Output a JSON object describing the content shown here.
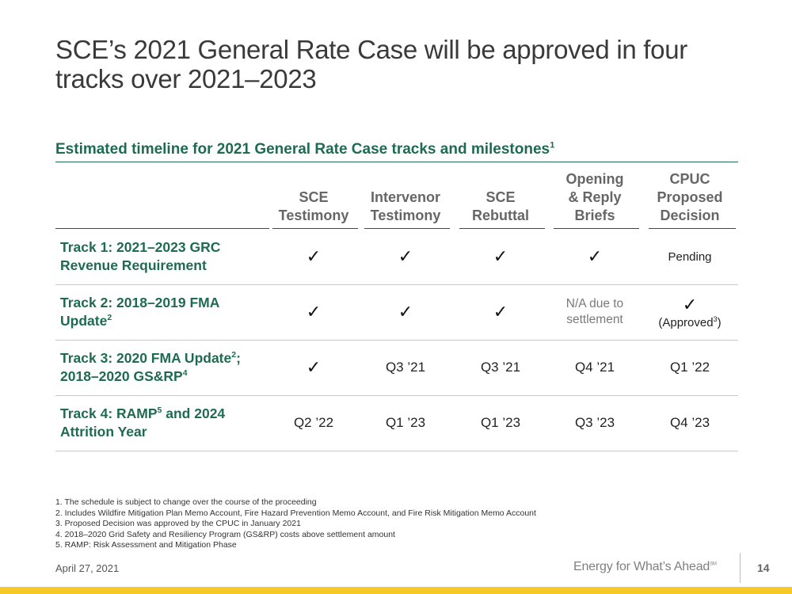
{
  "title": "SCE’s 2021 General Rate Case will be approved in four tracks over 2021–2023",
  "subtitle": "Estimated timeline for 2021 General Rate Case tracks and milestones",
  "subtitle_sup": "1",
  "columns": [
    "SCE\nTestimony",
    "Intervenor\nTestimony",
    "SCE\nRebuttal",
    "Opening\n& Reply\nBriefs",
    "CPUC\nProposed\nDecision"
  ],
  "check_icon": "check-icon",
  "rows": [
    {
      "label_a": "Track 1: 2021–2023 GRC",
      "label_b": "Revenue Requirement",
      "label_b_sup": "",
      "cells": [
        "✓",
        "✓",
        "✓",
        "✓",
        "Pending"
      ]
    },
    {
      "label_a": "Track 2: 2018–2019 FMA",
      "label_b": "Update",
      "label_b_sup": "2",
      "cells": [
        "✓",
        "✓",
        "✓",
        "N/A due to settlement",
        "✓"
      ],
      "cell5_note": "(Approved",
      "cell5_sup": "3",
      "cell5_close": ")"
    },
    {
      "label_a": "Track 3: 2020 FMA Update",
      "label_a_sup": "2",
      "label_a_tail": ";",
      "label_b": "2018–2020 GS&RP",
      "label_b_sup": "4",
      "cells": [
        "✓",
        "Q3 ’21",
        "Q3 ’21",
        "Q4 ’21",
        "Q1 ’22"
      ]
    },
    {
      "label_a": "Track 4: RAMP",
      "label_a_sup": "5",
      "label_a_tail": " and 2024",
      "label_b": "Attrition Year",
      "cells": [
        "Q2 ’22",
        "Q1 ’23",
        "Q1 ’23",
        "Q3 ’23",
        "Q4 ’23"
      ]
    }
  ],
  "footnotes": [
    "1. The schedule is subject to change over the course of the proceeding",
    "2. Includes Wildfire Mitigation Plan Memo Account, Fire Hazard Prevention Memo Account, and Fire Risk Mitigation Memo Account",
    "3. Proposed Decision was approved by the CPUC in January 2021",
    "4. 2018–2020 Grid Safety and Resiliency Program (GS&RP) costs above settlement amount",
    "5. RAMP: Risk Assessment and Mitigation Phase"
  ],
  "footer": {
    "date": "April 27, 2021",
    "tagline": "Energy for What’s Ahead",
    "tagline_mark": "SM",
    "page": "14"
  },
  "colors": {
    "accent_green": "#1e6b52",
    "header_grey": "#666666",
    "bottom_bar_yellow": "#f7c928"
  }
}
